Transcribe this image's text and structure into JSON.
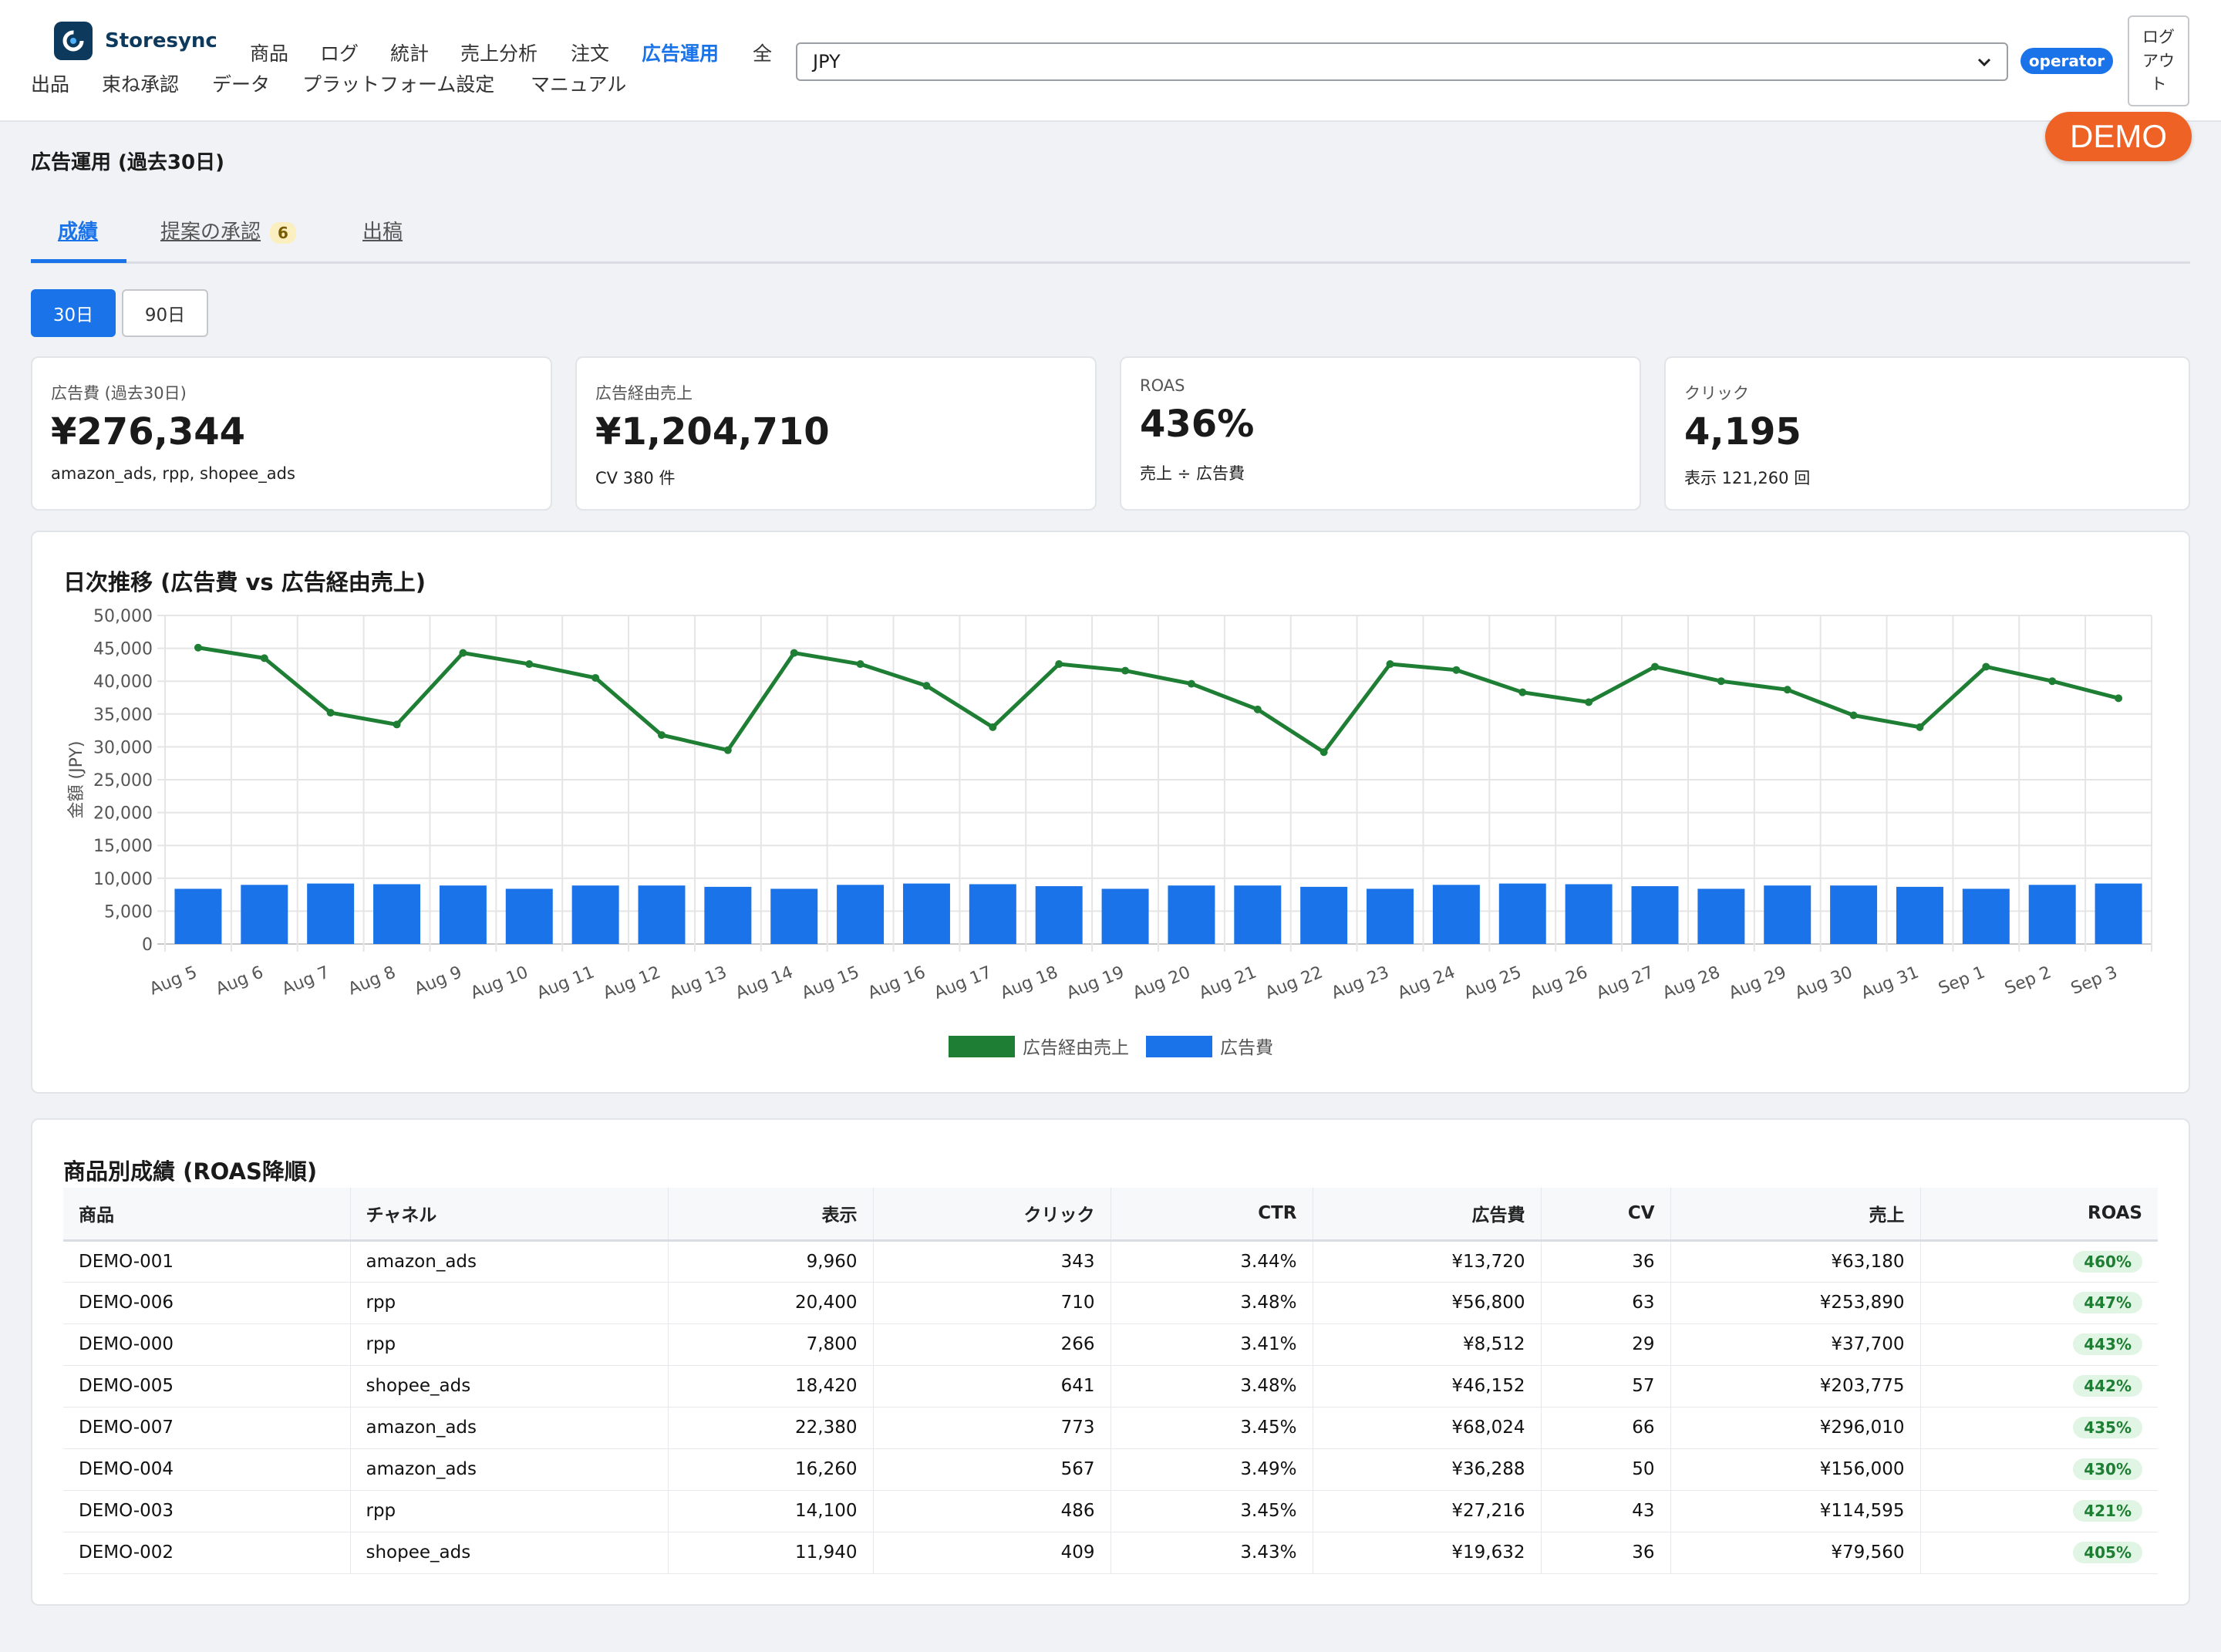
{
  "app": {
    "name": "Storesync"
  },
  "nav": {
    "items": [
      "商品",
      "ログ",
      "統計",
      "売上分析",
      "注文",
      "広告運用",
      "全出品",
      "束ね承認",
      "データ",
      "プラットフォーム設定",
      "マニュアル"
    ],
    "active": "広告運用"
  },
  "header": {
    "currency": "JPY",
    "role": "operator",
    "logout_label": "ログアウト",
    "demo_label": "DEMO"
  },
  "page": {
    "title": "広告運用 (過去30日)",
    "tabs": [
      {
        "label": "成績",
        "active": true
      },
      {
        "label": "提案の承認",
        "count": "6"
      },
      {
        "label": "出稿"
      }
    ],
    "periods": [
      "30日",
      "90日"
    ],
    "active_period": "30日"
  },
  "kpis": [
    {
      "label": "広告費 (過去30日)",
      "value": "¥276,344",
      "sub": "amazon_ads, rpp, shopee_ads"
    },
    {
      "label": "広告経由売上",
      "value": "¥1,204,710",
      "sub": "CV 380 件"
    },
    {
      "label": "ROAS",
      "value": "436%",
      "sub": "売上 ÷ 広告費"
    },
    {
      "label": "クリック",
      "value": "4,195",
      "sub": "表示 121,260 回"
    }
  ],
  "chart_data": {
    "type": "bar",
    "title": "日次推移 (広告費 vs 広告経由売上)",
    "ylabel": "金額 (JPY)",
    "xlabel": "",
    "ylim": [
      0,
      50000
    ],
    "yticks": [
      "0",
      "5,000",
      "10,000",
      "15,000",
      "20,000",
      "25,000",
      "30,000",
      "35,000",
      "40,000",
      "45,000",
      "50,000"
    ],
    "grid": true,
    "legend_position": "bottom",
    "categories": [
      "Aug 5",
      "Aug 6",
      "Aug 7",
      "Aug 8",
      "Aug 9",
      "Aug 10",
      "Aug 11",
      "Aug 12",
      "Aug 13",
      "Aug 14",
      "Aug 15",
      "Aug 16",
      "Aug 17",
      "Aug 18",
      "Aug 19",
      "Aug 20",
      "Aug 21",
      "Aug 22",
      "Aug 23",
      "Aug 24",
      "Aug 25",
      "Aug 26",
      "Aug 27",
      "Aug 28",
      "Aug 29",
      "Aug 30",
      "Aug 31",
      "Sep 1",
      "Sep 2",
      "Sep 3"
    ],
    "series": [
      {
        "name": "広告経由売上",
        "type": "line",
        "color": "#1e7e34",
        "values": [
          45100,
          43500,
          35200,
          33400,
          44300,
          42600,
          40500,
          31800,
          29500,
          44300,
          42600,
          39300,
          33000,
          42600,
          41600,
          39600,
          35700,
          29200,
          42600,
          41700,
          38300,
          36800,
          42200,
          40000,
          38700,
          34800,
          33000,
          42200,
          40000,
          37400
        ]
      },
      {
        "name": "広告費",
        "type": "bar",
        "color": "#1a73e8",
        "values": [
          8400,
          9000,
          9200,
          9100,
          8900,
          8400,
          8900,
          8900,
          8700,
          8400,
          9000,
          9200,
          9100,
          8800,
          8400,
          8900,
          8900,
          8700,
          8400,
          9000,
          9200,
          9100,
          8800,
          8400,
          8900,
          8900,
          8700,
          8400,
          9000,
          9200
        ]
      }
    ]
  },
  "product_table": {
    "title": "商品別成績 (ROAS降順)",
    "columns": [
      "商品",
      "チャネル",
      "表示",
      "クリック",
      "CTR",
      "広告費",
      "CV",
      "売上",
      "ROAS"
    ],
    "rows": [
      [
        "DEMO-001",
        "amazon_ads",
        "9,960",
        "343",
        "3.44%",
        "¥13,720",
        "36",
        "¥63,180",
        "460%"
      ],
      [
        "DEMO-006",
        "rpp",
        "20,400",
        "710",
        "3.48%",
        "¥56,800",
        "63",
        "¥253,890",
        "447%"
      ],
      [
        "DEMO-000",
        "rpp",
        "7,800",
        "266",
        "3.41%",
        "¥8,512",
        "29",
        "¥37,700",
        "443%"
      ],
      [
        "DEMO-005",
        "shopee_ads",
        "18,420",
        "641",
        "3.48%",
        "¥46,152",
        "57",
        "¥203,775",
        "442%"
      ],
      [
        "DEMO-007",
        "amazon_ads",
        "22,380",
        "773",
        "3.45%",
        "¥68,024",
        "66",
        "¥296,010",
        "435%"
      ],
      [
        "DEMO-004",
        "amazon_ads",
        "16,260",
        "567",
        "3.49%",
        "¥36,288",
        "50",
        "¥156,000",
        "430%"
      ],
      [
        "DEMO-003",
        "rpp",
        "14,100",
        "486",
        "3.45%",
        "¥27,216",
        "43",
        "¥114,595",
        "421%"
      ],
      [
        "DEMO-002",
        "shopee_ads",
        "11,940",
        "409",
        "3.43%",
        "¥19,632",
        "36",
        "¥79,560",
        "405%"
      ]
    ]
  }
}
